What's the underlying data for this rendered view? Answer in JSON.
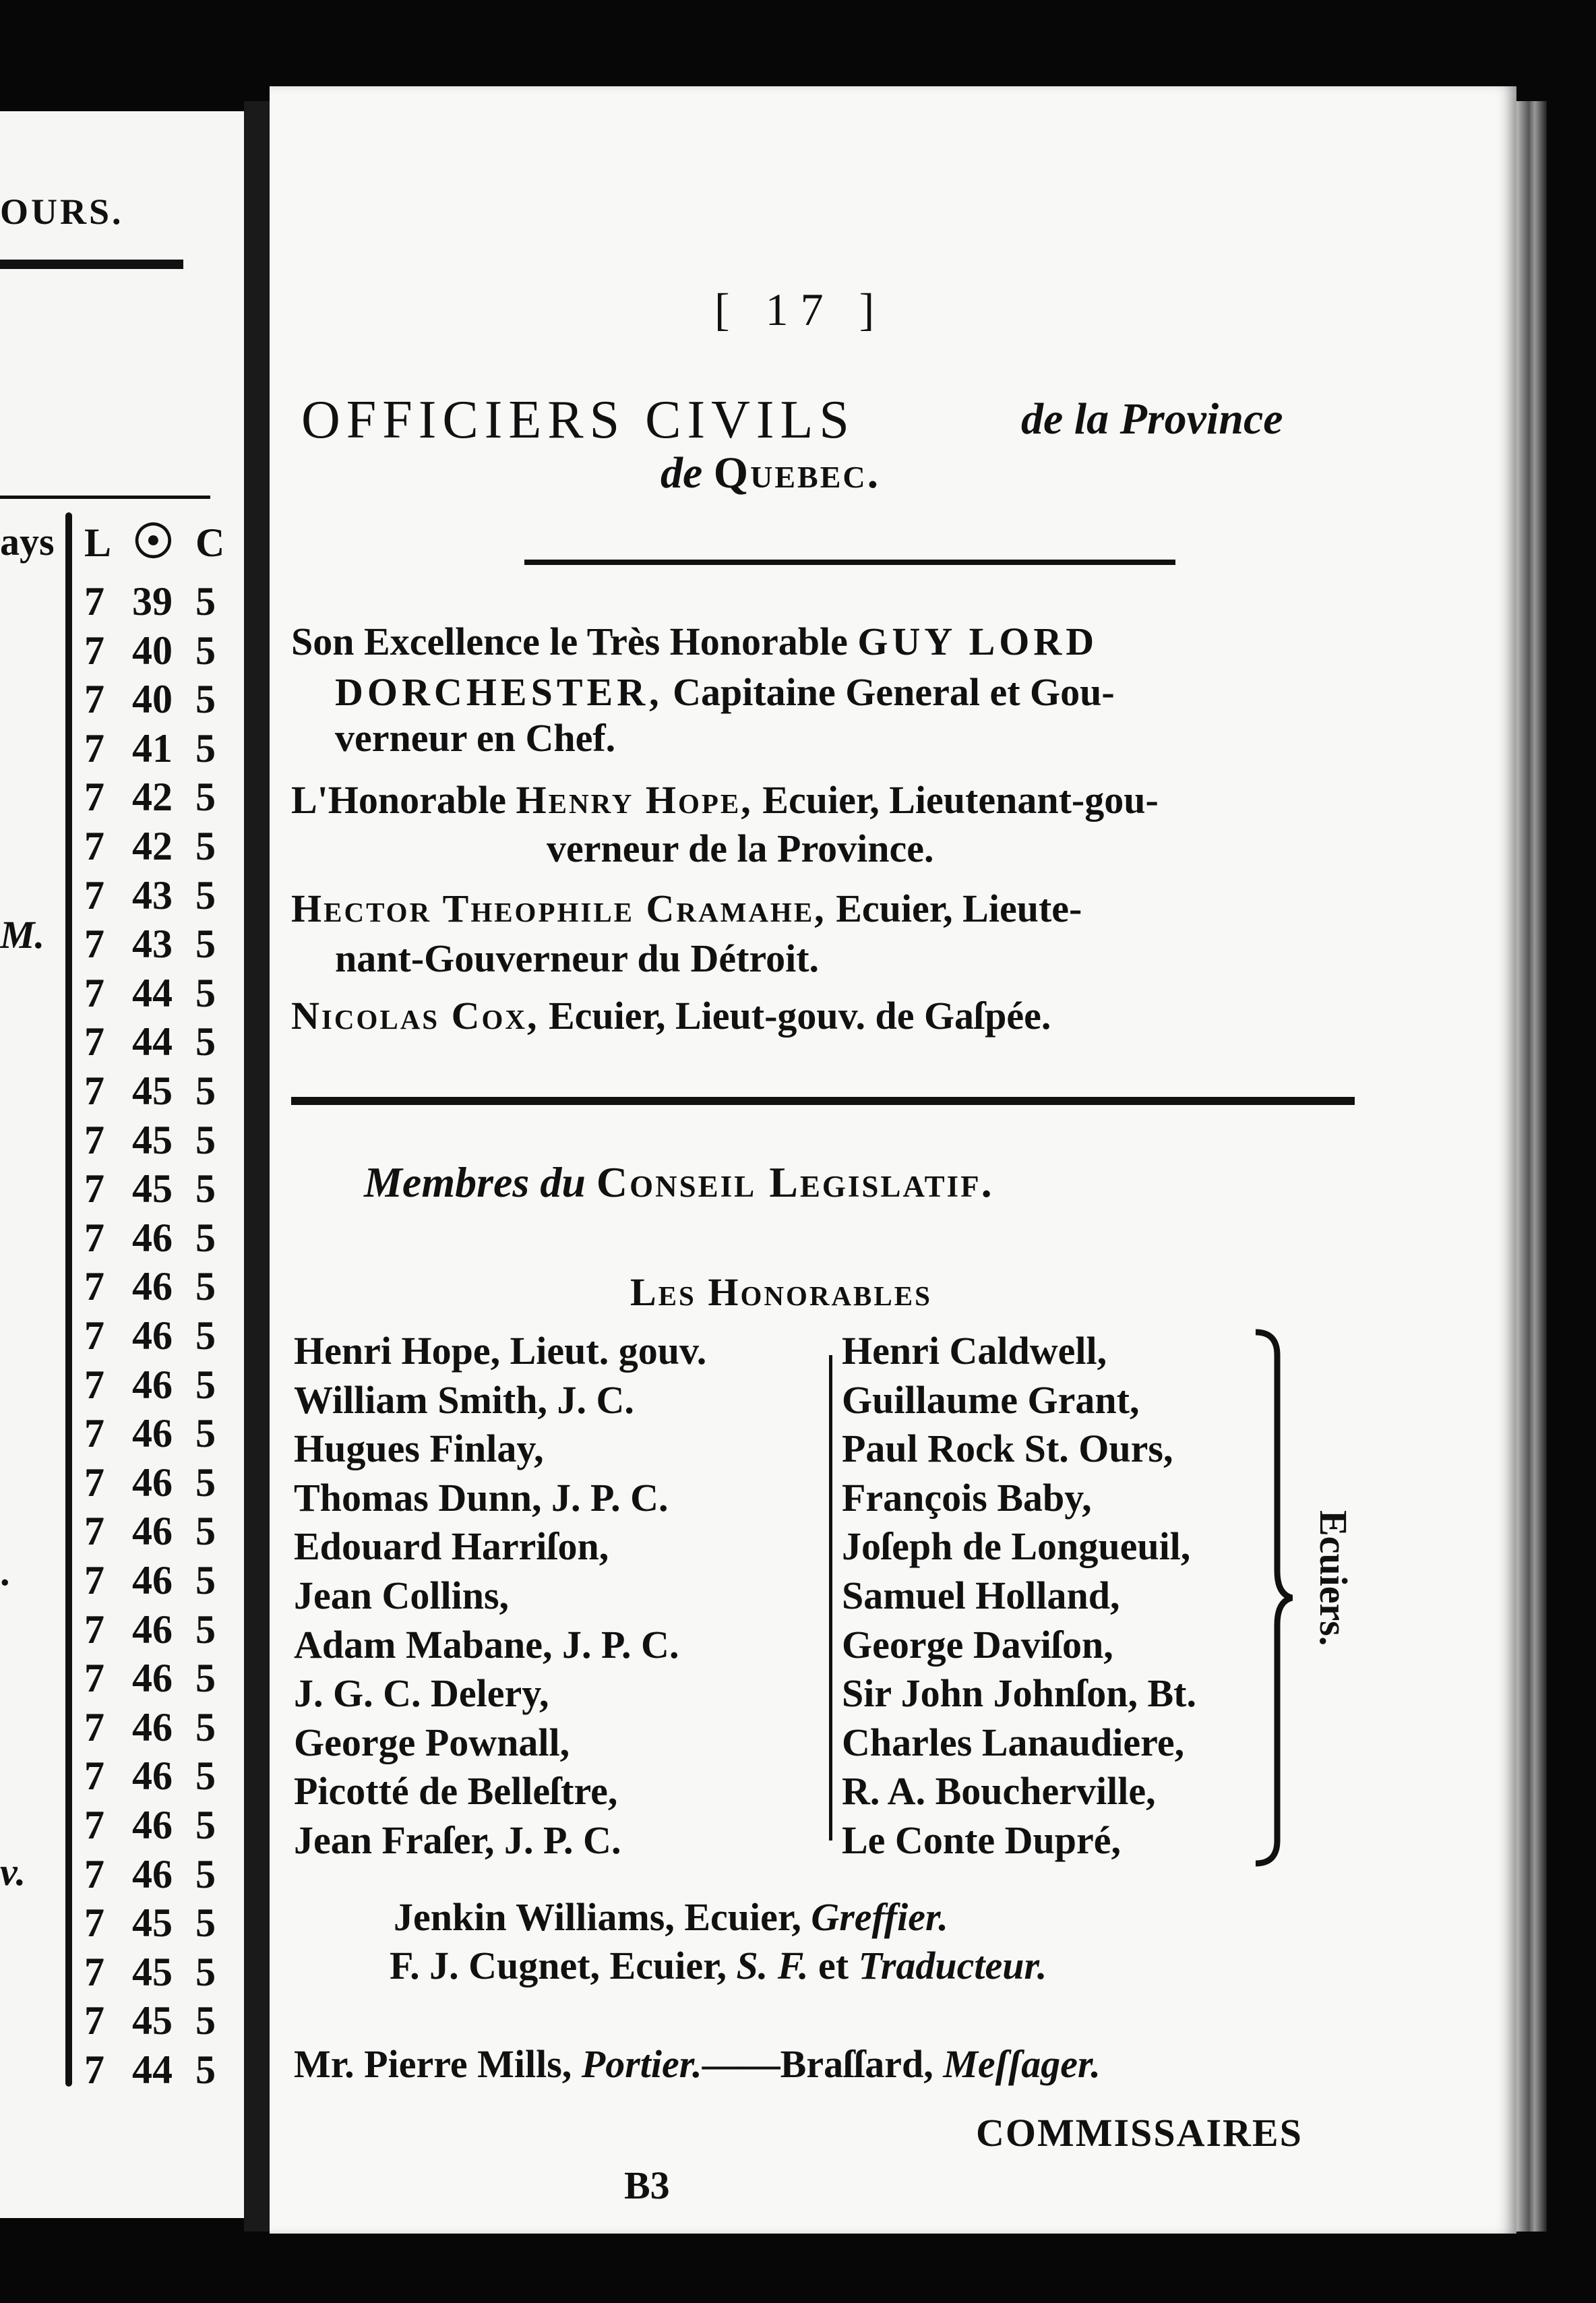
{
  "left_page": {
    "heading_fragment": "OURS.",
    "column_label_fragment": "ays",
    "side_fragments": [
      "M.",
      ".",
      "v."
    ],
    "table_headers": [
      "L",
      "☉",
      "C"
    ],
    "rows": [
      [
        "7",
        "39",
        "5"
      ],
      [
        "7",
        "40",
        "5"
      ],
      [
        "7",
        "40",
        "5"
      ],
      [
        "7",
        "41",
        "5"
      ],
      [
        "7",
        "42",
        "5"
      ],
      [
        "7",
        "42",
        "5"
      ],
      [
        "7",
        "43",
        "5"
      ],
      [
        "7",
        "43",
        "5"
      ],
      [
        "7",
        "44",
        "5"
      ],
      [
        "7",
        "44",
        "5"
      ],
      [
        "7",
        "45",
        "5"
      ],
      [
        "7",
        "45",
        "5"
      ],
      [
        "7",
        "45",
        "5"
      ],
      [
        "7",
        "46",
        "5"
      ],
      [
        "7",
        "46",
        "5"
      ],
      [
        "7",
        "46",
        "5"
      ],
      [
        "7",
        "46",
        "5"
      ],
      [
        "7",
        "46",
        "5"
      ],
      [
        "7",
        "46",
        "5"
      ],
      [
        "7",
        "46",
        "5"
      ],
      [
        "7",
        "46",
        "5"
      ],
      [
        "7",
        "46",
        "5"
      ],
      [
        "7",
        "46",
        "5"
      ],
      [
        "7",
        "46",
        "5"
      ],
      [
        "7",
        "46",
        "5"
      ],
      [
        "7",
        "46",
        "5"
      ],
      [
        "7",
        "46",
        "5"
      ],
      [
        "7",
        "45",
        "5"
      ],
      [
        "7",
        "45",
        "5"
      ],
      [
        "7",
        "45",
        "5"
      ],
      [
        "7",
        "44",
        "5"
      ]
    ]
  },
  "right_page": {
    "page_number": "[ 17 ]",
    "title_main": "OFFICIERS CIVILS",
    "title_italic": "de la Province",
    "title_line2_italic": "de",
    "title_line2_sc": "Quebec.",
    "officers": [
      {
        "indent": 0,
        "segs": [
          [
            "Son Excellence le Très Honorable ",
            ""
          ],
          [
            "GUY LORD",
            "caps"
          ]
        ]
      },
      {
        "indent": 1,
        "segs": [
          [
            "DORCHESTER,",
            "caps"
          ],
          [
            " Capitaine General et Gou-",
            ""
          ]
        ]
      },
      {
        "indent": 1,
        "segs": [
          [
            "verneur en Chef.",
            ""
          ]
        ]
      },
      {
        "indent": 0,
        "segs": [
          [
            "L'Honorable ",
            ""
          ],
          [
            "Henry Hope,",
            "sc"
          ],
          [
            " Ecuier, Lieutenant-gou-",
            ""
          ]
        ]
      },
      {
        "indent": 2,
        "segs": [
          [
            "verneur de la Province.",
            ""
          ]
        ]
      },
      {
        "indent": 0,
        "segs": [
          [
            "Hector Theophile Cramahe,",
            "sc"
          ],
          [
            " Ecuier, Lieute-",
            ""
          ]
        ]
      },
      {
        "indent": 1,
        "segs": [
          [
            "nant-Gouverneur du Détroit.",
            ""
          ]
        ]
      },
      {
        "indent": 0,
        "segs": [
          [
            "Nicolas Cox,",
            "sc"
          ],
          [
            " Ecuier, Lieut-gouv. de Gaſpée.",
            ""
          ]
        ]
      }
    ],
    "council_heading_italic": "Membres du",
    "council_heading_sc": "Conseil Legislatif.",
    "honorables_label": "Les Honorables",
    "members_left": [
      "Henri Hope, Lieut. gouv.",
      "William Smith, J. C.",
      "Hugues Finlay,",
      "Thomas Dunn, J. P. C.",
      "Edouard Harriſon,",
      "Jean Collins,",
      "Adam Mabane, J. P. C.",
      "J. G. C. Delery,",
      "George Pownall,",
      "Picotté de Belleſtre,",
      "Jean Fraſer, J. P. C."
    ],
    "members_right": [
      "Henri Caldwell,",
      "Guillaume Grant,",
      "Paul Rock St. Ours,",
      "François Baby,",
      "Joſeph de Longueuil,",
      "Samuel Holland,",
      "George Daviſon,",
      "Sir John Johnſon, Bt.",
      "Charles Lanaudiere,",
      "R. A. Boucherville,",
      "Le Conte Dupré,"
    ],
    "brace_label": "Ecuiers.",
    "clerks": [
      [
        [
          "Jenkin Williams, Ecuier, ",
          ""
        ],
        [
          "Greffier.",
          "it"
        ]
      ],
      [
        [
          "F. J. Cugnet, Ecuier, ",
          ""
        ],
        [
          "S. F.",
          "it"
        ],
        [
          " et ",
          ""
        ],
        [
          "Traducteur.",
          "it"
        ]
      ]
    ],
    "officers_line": [
      [
        "Mr. Pierre Mills, ",
        ""
      ],
      [
        "Portier.",
        "it"
      ],
      [
        "——Braſſard, ",
        ""
      ],
      [
        "Meſſager.",
        "it"
      ]
    ],
    "catchword": "COMMISSAIRES",
    "signature_mark": "B3"
  }
}
